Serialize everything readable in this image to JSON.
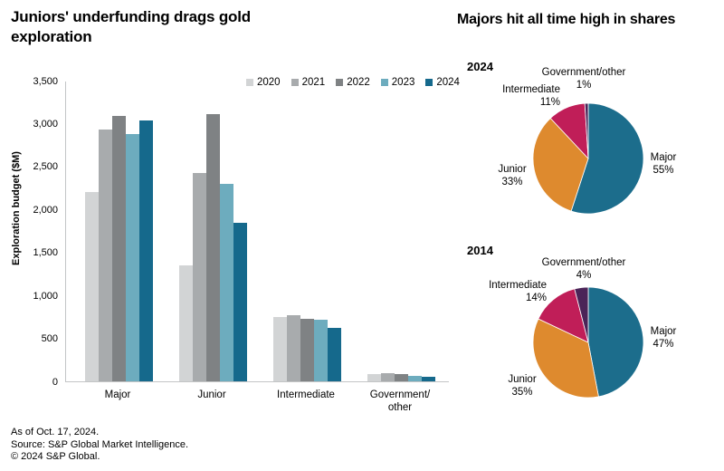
{
  "left_chart": {
    "title": "Juniors' underfunding drags gold exploration",
    "ylabel": "Exploration budget ($M)",
    "ytick_labels": [
      "0",
      "500",
      "1,000",
      "1,500",
      "2,000",
      "2,500",
      "3,000",
      "3,500"
    ]
  },
  "right_chart": {
    "title": "Majors hit all time high in shares"
  },
  "chart_data": [
    {
      "type": "bar",
      "title": "Juniors' underfunding drags gold exploration",
      "xlabel": "",
      "ylabel": "Exploration budget ($M)",
      "categories": [
        "Major",
        "Junior",
        "Intermediate",
        "Government/other"
      ],
      "series": [
        {
          "name": "2020",
          "color": "#d2d4d5",
          "values": [
            2200,
            1350,
            750,
            85
          ]
        },
        {
          "name": "2021",
          "color": "#a8abad",
          "values": [
            2930,
            2430,
            770,
            90
          ]
        },
        {
          "name": "2022",
          "color": "#7f8284",
          "values": [
            3090,
            3110,
            730,
            80
          ]
        },
        {
          "name": "2023",
          "color": "#6dacbe",
          "values": [
            2880,
            2300,
            715,
            60
          ]
        },
        {
          "name": "2024",
          "color": "#15698c",
          "values": [
            3040,
            1840,
            620,
            55
          ]
        }
      ],
      "ylim": [
        0,
        3500
      ],
      "yticks": [
        0,
        500,
        1000,
        1500,
        2000,
        2500,
        3000,
        3500
      ],
      "grid": false,
      "legend_position": "top-right"
    },
    {
      "type": "pie",
      "title": "2024",
      "labels": [
        "Major",
        "Junior",
        "Intermediate",
        "Government/other"
      ],
      "values": [
        55,
        33,
        11,
        1
      ],
      "pct_labels": [
        "55%",
        "33%",
        "11%",
        "1%"
      ],
      "colors": [
        "#1c6d8c",
        "#de8a2e",
        "#c01e58",
        "#4b2458"
      ],
      "start_angle": 0,
      "direction": "clockwise"
    },
    {
      "type": "pie",
      "title": "2014",
      "labels": [
        "Major",
        "Junior",
        "Intermediate",
        "Government/other"
      ],
      "values": [
        47,
        35,
        14,
        4
      ],
      "pct_labels": [
        "47%",
        "35%",
        "14%",
        "4%"
      ],
      "colors": [
        "#1c6d8c",
        "#de8a2e",
        "#c01e58",
        "#4b2458"
      ],
      "start_angle": 0,
      "direction": "clockwise"
    }
  ],
  "footer": {
    "as_of": "As of Oct. 17, 2024.",
    "source": "Source: S&P Global Market Intelligence.",
    "copyright": "© 2024 S&P Global."
  }
}
